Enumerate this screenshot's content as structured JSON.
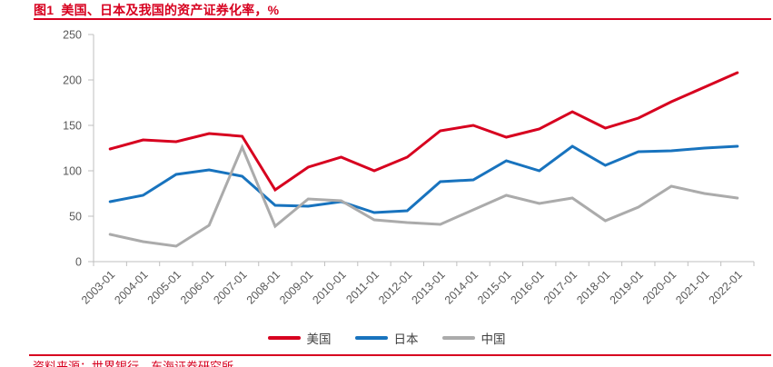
{
  "header": {
    "title": "图1  美国、日本及我国的资产证券化率，%"
  },
  "footer": {
    "source": "资料来源：世界银行，东海证券研究所"
  },
  "colors": {
    "accent_red": "#d7001f",
    "us_line": "#d7001f",
    "japan_line": "#1873be",
    "china_line": "#ababab",
    "axis_line": "#bfbfbf",
    "axis_text": "#595959",
    "legend_text": "#404040"
  },
  "chart_data": {
    "type": "line",
    "title": "图1  美国、日本及我国的资产证券化率，%",
    "xlabel": "",
    "ylabel": "",
    "ylim": [
      0,
      250
    ],
    "yticks": [
      0,
      50,
      100,
      150,
      200,
      250
    ],
    "grid": false,
    "legend_position": "bottom",
    "categories": [
      "2003-01",
      "2004-01",
      "2005-01",
      "2006-01",
      "2007-01",
      "2008-01",
      "2009-01",
      "2010-01",
      "2011-01",
      "2012-01",
      "2013-01",
      "2014-01",
      "2015-01",
      "2016-01",
      "2017-01",
      "2018-01",
      "2019-01",
      "2020-01",
      "2021-01",
      "2022-01"
    ],
    "series": [
      {
        "key": "us",
        "name": "美国",
        "color": "#d7001f",
        "values": [
          124,
          134,
          132,
          141,
          138,
          79,
          104,
          115,
          100,
          115,
          144,
          150,
          137,
          146,
          165,
          147,
          158,
          176,
          192,
          208
        ]
      },
      {
        "key": "japan",
        "name": "日本",
        "color": "#1873be",
        "values": [
          66,
          73,
          96,
          101,
          94,
          62,
          61,
          66,
          54,
          56,
          88,
          90,
          111,
          100,
          127,
          106,
          121,
          122,
          125,
          127
        ]
      },
      {
        "key": "china",
        "name": "中国",
        "color": "#ababab",
        "values": [
          30,
          22,
          17,
          40,
          126,
          39,
          69,
          67,
          46,
          43,
          41,
          57,
          73,
          64,
          70,
          45,
          60,
          83,
          75,
          70
        ]
      }
    ]
  }
}
